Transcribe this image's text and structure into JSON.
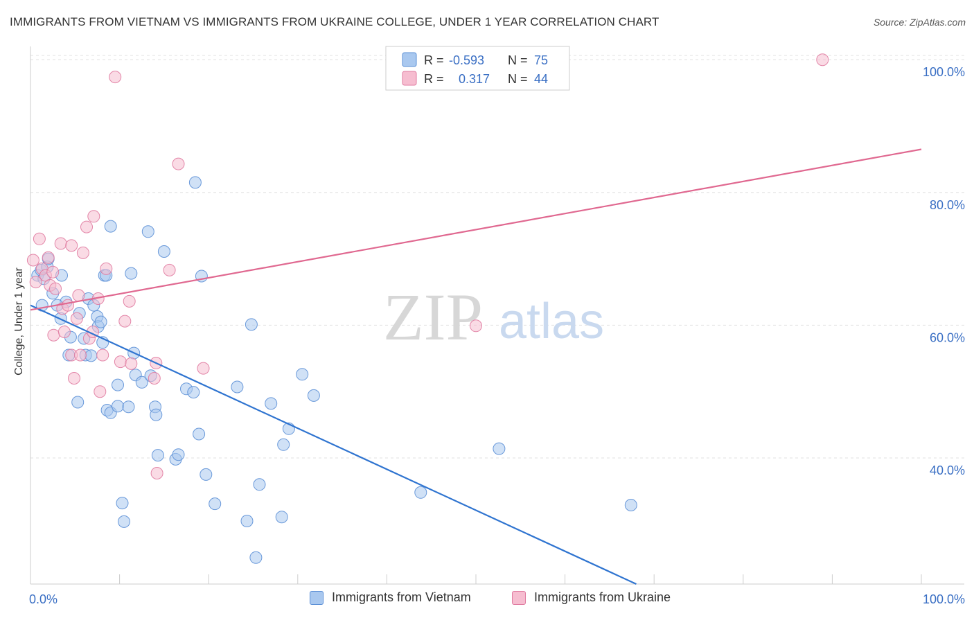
{
  "header": {
    "title": "IMMIGRANTS FROM VIETNAM VS IMMIGRANTS FROM UKRAINE COLLEGE, UNDER 1 YEAR CORRELATION CHART",
    "source": "Source: ZipAtlas.com"
  },
  "watermark": {
    "zip": "ZIP",
    "atlas": "atlas"
  },
  "colors": {
    "blue": "#5b8fd6",
    "blue_fill": "#a9c8ef",
    "blue_line": "#2f74d0",
    "pink": "#e07aa0",
    "pink_fill": "#f6bdd0",
    "pink_line": "#e06890",
    "axis_text": "#3a6fc4",
    "grid": "#dddddd"
  },
  "legend": {
    "rows": [
      {
        "r_label": "R =",
        "r_value": "-0.593",
        "n_label": "N =",
        "n_value": "75"
      },
      {
        "r_label": "R =",
        "r_value": "0.317",
        "n_label": "N =",
        "n_value": "44"
      }
    ]
  },
  "bottom_legend": {
    "vietnam": "Immigrants from Vietnam",
    "ukraine": "Immigrants from Ukraine"
  },
  "chart_data": {
    "type": "scatter",
    "title": "IMMIGRANTS FROM VIETNAM VS IMMIGRANTS FROM UKRAINE COLLEGE, UNDER 1 YEAR CORRELATION CHART",
    "xlabel": "",
    "ylabel": "College, Under 1 year",
    "xlim": [
      0,
      100
    ],
    "ylim": [
      21,
      102
    ],
    "x_tick_labels": [
      "0.0%",
      "100.0%"
    ],
    "y_ticks": [
      40,
      60,
      80,
      100
    ],
    "y_tick_labels": [
      "40.0%",
      "60.0%",
      "80.0%",
      "100.0%"
    ],
    "grid": true,
    "series": [
      {
        "name": "Immigrants from Vietnam",
        "color": "#5b8fd6",
        "r": -0.593,
        "n": 75,
        "trend": {
          "x": [
            0,
            68
          ],
          "y": [
            63.0,
            21.0
          ]
        },
        "points": [
          [
            0.8,
            67.5
          ],
          [
            1.2,
            68.3
          ],
          [
            1.5,
            67.0
          ],
          [
            1.9,
            68.8
          ],
          [
            2.0,
            70.0
          ],
          [
            1.3,
            63.0
          ],
          [
            2.5,
            64.8
          ],
          [
            3.5,
            67.5
          ],
          [
            4.0,
            63.5
          ],
          [
            3.0,
            63.0
          ],
          [
            3.4,
            61.0
          ],
          [
            4.5,
            58.2
          ],
          [
            4.3,
            55.5
          ],
          [
            5.5,
            61.8
          ],
          [
            5.3,
            48.4
          ],
          [
            6.0,
            58.0
          ],
          [
            6.2,
            55.5
          ],
          [
            6.8,
            55.4
          ],
          [
            6.5,
            64.0
          ],
          [
            7.1,
            63.0
          ],
          [
            7.5,
            61.3
          ],
          [
            7.6,
            59.8
          ],
          [
            7.9,
            60.5
          ],
          [
            8.1,
            57.4
          ],
          [
            8.3,
            67.5
          ],
          [
            8.5,
            67.5
          ],
          [
            9.0,
            74.9
          ],
          [
            8.6,
            47.2
          ],
          [
            9.0,
            46.8
          ],
          [
            9.8,
            47.8
          ],
          [
            9.8,
            51.0
          ],
          [
            10.3,
            33.2
          ],
          [
            10.5,
            30.4
          ],
          [
            11.0,
            47.7
          ],
          [
            11.3,
            67.8
          ],
          [
            11.6,
            55.8
          ],
          [
            11.8,
            52.5
          ],
          [
            12.5,
            51.4
          ],
          [
            13.5,
            52.4
          ],
          [
            13.2,
            74.1
          ],
          [
            14.0,
            47.7
          ],
          [
            14.1,
            46.5
          ],
          [
            14.3,
            40.4
          ],
          [
            15.0,
            71.1
          ],
          [
            16.3,
            39.8
          ],
          [
            16.6,
            40.5
          ],
          [
            17.5,
            50.4
          ],
          [
            18.3,
            49.9
          ],
          [
            18.5,
            81.5
          ],
          [
            18.9,
            43.6
          ],
          [
            19.2,
            67.4
          ],
          [
            19.7,
            37.5
          ],
          [
            20.7,
            33.1
          ],
          [
            23.2,
            50.7
          ],
          [
            24.3,
            30.5
          ],
          [
            24.8,
            60.1
          ],
          [
            25.3,
            25.0
          ],
          [
            25.7,
            36.0
          ],
          [
            27.0,
            48.2
          ],
          [
            28.2,
            31.1
          ],
          [
            28.4,
            42.0
          ],
          [
            29.0,
            44.4
          ],
          [
            30.5,
            52.6
          ],
          [
            31.8,
            49.4
          ],
          [
            43.8,
            34.8
          ],
          [
            52.6,
            41.4
          ],
          [
            67.4,
            32.9
          ]
        ]
      },
      {
        "name": "Immigrants from Ukraine",
        "color": "#e07aa0",
        "r": 0.317,
        "n": 44,
        "trend": {
          "x": [
            0,
            100
          ],
          "y": [
            62.3,
            86.5
          ]
        },
        "points": [
          [
            0.3,
            69.8
          ],
          [
            0.6,
            66.5
          ],
          [
            1.0,
            73.0
          ],
          [
            1.3,
            68.5
          ],
          [
            1.7,
            67.5
          ],
          [
            2.0,
            70.2
          ],
          [
            2.2,
            66.0
          ],
          [
            2.5,
            68.0
          ],
          [
            2.8,
            65.5
          ],
          [
            2.6,
            58.5
          ],
          [
            3.4,
            72.3
          ],
          [
            3.6,
            62.5
          ],
          [
            3.8,
            59.0
          ],
          [
            4.2,
            63.0
          ],
          [
            4.6,
            72.0
          ],
          [
            4.6,
            55.5
          ],
          [
            4.9,
            52.0
          ],
          [
            5.2,
            61.0
          ],
          [
            5.6,
            55.5
          ],
          [
            5.4,
            64.5
          ],
          [
            5.9,
            70.9
          ],
          [
            6.3,
            74.8
          ],
          [
            6.6,
            58.0
          ],
          [
            7.0,
            59.0
          ],
          [
            7.1,
            76.4
          ],
          [
            7.6,
            64.0
          ],
          [
            7.8,
            50.0
          ],
          [
            8.1,
            55.5
          ],
          [
            8.5,
            68.5
          ],
          [
            9.5,
            97.4
          ],
          [
            10.1,
            54.5
          ],
          [
            10.6,
            60.6
          ],
          [
            11.3,
            54.2
          ],
          [
            11.1,
            63.6
          ],
          [
            13.9,
            52.0
          ],
          [
            14.1,
            54.3
          ],
          [
            14.2,
            37.7
          ],
          [
            15.6,
            68.3
          ],
          [
            16.6,
            84.3
          ],
          [
            19.4,
            53.5
          ],
          [
            50.0,
            59.9
          ],
          [
            88.9,
            100.0
          ]
        ]
      }
    ]
  }
}
